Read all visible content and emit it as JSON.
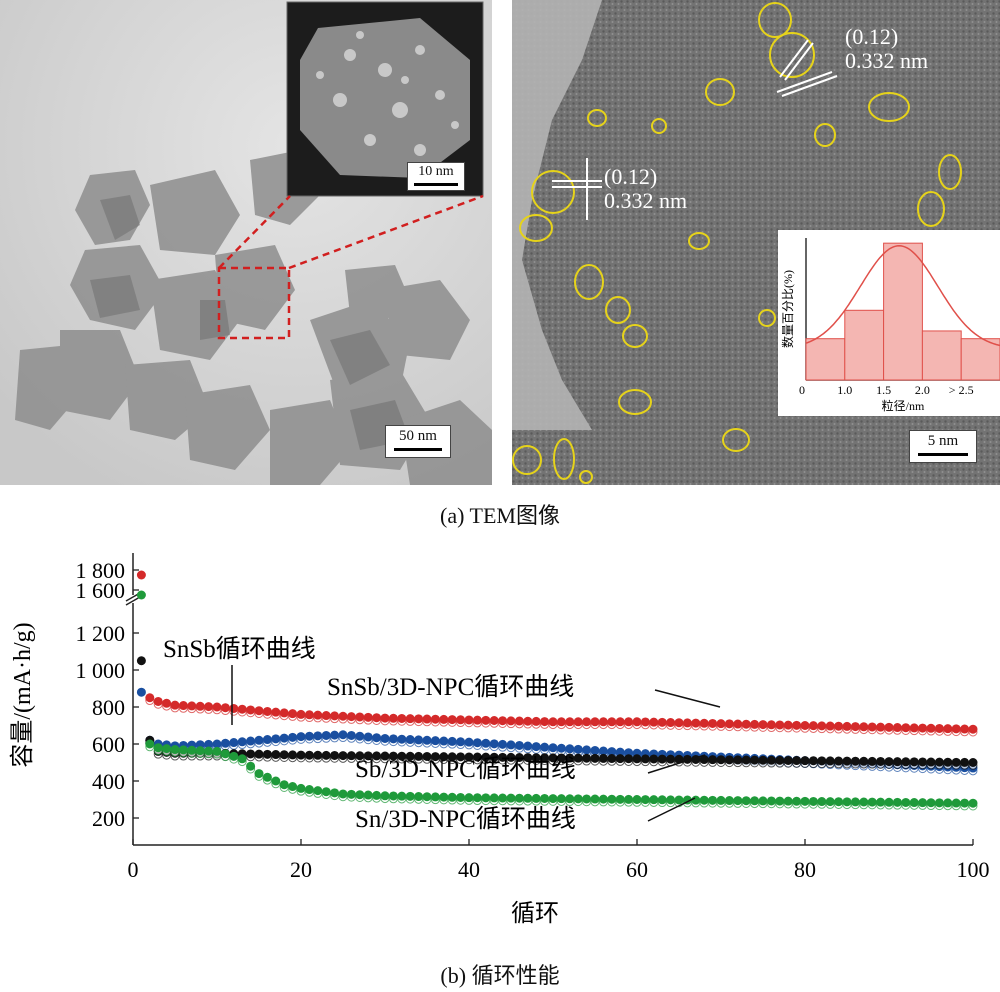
{
  "panel_a": {
    "caption": "(a) TEM图像",
    "left_image": {
      "scale_label": "50 nm",
      "inset_scale_label": "10 nm"
    },
    "right_image": {
      "scale_label": "5 nm",
      "lattice_label_top": {
        "plane": "(0.12)",
        "spacing": "0.332 nm"
      },
      "lattice_label_left": {
        "plane": "(0.12)",
        "spacing": "0.332 nm"
      },
      "histogram": {
        "ylabel": "数量百分比(%)",
        "xlabel": "粒径/nm",
        "xtick_labels": [
          "0",
          "1.0",
          "1.5",
          "2.0",
          "> 2.5"
        ],
        "bins": [
          "<1.0",
          "1.0-1.5",
          "1.5-2.0",
          "2.0-2.5",
          ">2.5"
        ],
        "percentages": [
          16,
          27,
          53,
          19,
          16
        ]
      },
      "colors": {
        "circles": "#e6d31a",
        "histogram_fill": "#f4b6b2",
        "histogram_curve": "#e0504a"
      }
    }
  },
  "panel_b": {
    "caption": "(b) 循环性能"
  },
  "chart_data": {
    "type": "scatter",
    "xlabel": "循环",
    "ylabel": "容量/(mA·h/g)",
    "xlim": [
      0,
      100
    ],
    "xticks": [
      0,
      20,
      40,
      60,
      80,
      100
    ],
    "yticks": [
      200,
      400,
      600,
      800,
      1000,
      1200,
      1600,
      1800
    ],
    "ytick_labels": [
      "200",
      "400",
      "600",
      "800",
      "1 000",
      "1 200",
      "1 600",
      "1 800"
    ],
    "axis_break": [
      1200,
      1600
    ],
    "annotations": [
      {
        "text": "SnSb循环曲线",
        "series": "SnSb循环曲线"
      },
      {
        "text": "SnSb/3D-NPC循环曲线",
        "series": "SnSb/3D-NPC循环曲线"
      },
      {
        "text": "Sb/3D-NPC循环曲线",
        "series": "Sb/3D-NPC循环曲线"
      },
      {
        "text": "Sn/3D-NPC循环曲线",
        "series": "Sn/3D-NPC循环曲线"
      }
    ],
    "series": [
      {
        "name": "SnSb/3D-NPC循环曲线",
        "color": "#d42a2a",
        "x": [
          1,
          2,
          3,
          5,
          10,
          15,
          20,
          30,
          40,
          50,
          60,
          70,
          80,
          90,
          100
        ],
        "y": [
          1750,
          850,
          830,
          810,
          800,
          780,
          760,
          740,
          730,
          720,
          720,
          710,
          700,
          690,
          680
        ]
      },
      {
        "name": "Sb/3D-NPC循环曲线",
        "color": "#1a4fa0",
        "x": [
          1,
          2,
          3,
          5,
          10,
          15,
          20,
          25,
          30,
          40,
          50,
          60,
          70,
          80,
          90,
          100
        ],
        "y": [
          880,
          620,
          600,
          590,
          600,
          620,
          640,
          650,
          630,
          610,
          580,
          550,
          530,
          510,
          490,
          470
        ]
      },
      {
        "name": "SnSb循环曲线",
        "color": "#111111",
        "x": [
          1,
          2,
          3,
          5,
          10,
          15,
          20,
          30,
          40,
          50,
          60,
          70,
          80,
          90,
          100
        ],
        "y": [
          1050,
          620,
          560,
          550,
          550,
          545,
          540,
          535,
          530,
          525,
          520,
          515,
          510,
          505,
          500
        ]
      },
      {
        "name": "Sn/3D-NPC循环曲线",
        "color": "#1f9a3a",
        "x": [
          1,
          2,
          3,
          5,
          10,
          13,
          15,
          18,
          20,
          25,
          30,
          40,
          50,
          60,
          70,
          80,
          90,
          100
        ],
        "y": [
          1550,
          600,
          580,
          570,
          560,
          520,
          440,
          380,
          360,
          330,
          320,
          310,
          305,
          300,
          295,
          290,
          285,
          280
        ]
      }
    ]
  }
}
